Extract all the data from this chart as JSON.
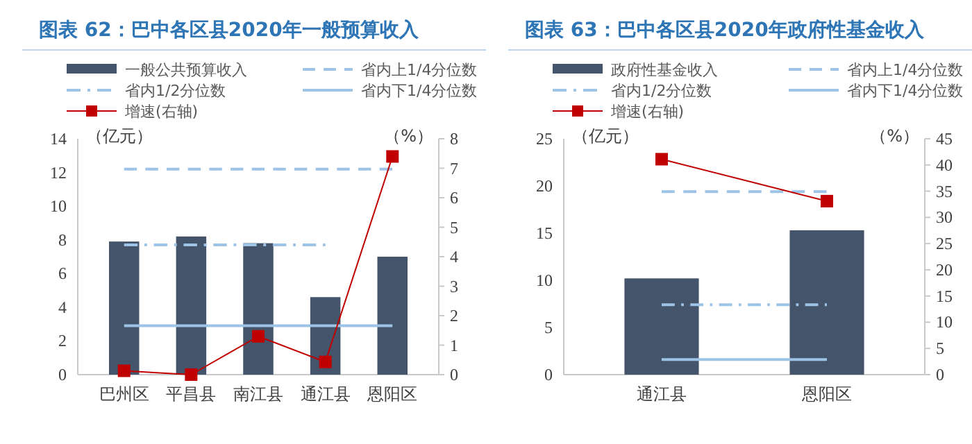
{
  "chart_data": [
    {
      "type": "bar",
      "title": "图表 62：巴中各区县2020年一般预算收入",
      "ylabel": "（亿元）",
      "y2label": "（%）",
      "categories": [
        "巴州区",
        "平昌县",
        "南江县",
        "通江县",
        "恩阳区"
      ],
      "legend": "top",
      "grid": false,
      "ylim": [
        0,
        14
      ],
      "yticks": [
        0,
        2,
        4,
        6,
        8,
        10,
        12,
        14
      ],
      "y2lim": [
        0,
        8
      ],
      "y2ticks": [
        0,
        1,
        2,
        3,
        4,
        5,
        6,
        7,
        8
      ],
      "series": [
        {
          "name": "一般公共预算收入",
          "color": "#44546a",
          "values": [
            7.9,
            8.2,
            7.8,
            4.6,
            7.0
          ]
        },
        {
          "name": "省内上1/4分位数",
          "color": "#9dc3e6",
          "type": "line",
          "line_style": "dashed",
          "marker": "none",
          "values": [
            12.2,
            12.2,
            12.2,
            12.2,
            12.2
          ]
        },
        {
          "name": "省内1/2分位数",
          "color": "#9dc3e6",
          "type": "line",
          "line_style": "dotted",
          "marker": "none",
          "values": [
            7.7,
            7.7,
            7.7,
            7.7,
            null
          ]
        },
        {
          "name": "省内下1/4分位数",
          "color": "#9dc3e6",
          "type": "line",
          "line_style": "solid",
          "marker": "none",
          "values": [
            2.9,
            2.9,
            2.9,
            2.9,
            2.9
          ]
        },
        {
          "name": "增速(右轴)",
          "color": "#c00000",
          "type": "line",
          "line_style": "solid",
          "marker": "square",
          "axis": "y2",
          "values": [
            0.13,
            0,
            1.3,
            0.43,
            7.4
          ]
        }
      ]
    },
    {
      "type": "bar",
      "title": "图表 63：巴中各区县2020年政府性基金收入",
      "ylabel": "（亿元）",
      "y2label": "（%）",
      "categories": [
        "通江县",
        "恩阳区"
      ],
      "legend": "top",
      "grid": false,
      "ylim": [
        0,
        25
      ],
      "yticks": [
        0,
        5,
        10,
        15,
        20,
        25
      ],
      "y2lim": [
        0,
        45
      ],
      "y2ticks": [
        0,
        5,
        10,
        15,
        20,
        25,
        30,
        35,
        40,
        45
      ],
      "series": [
        {
          "name": "政府性基金收入",
          "color": "#44546a",
          "values": [
            10.2,
            15.3
          ]
        },
        {
          "name": "省内上1/4分位数",
          "color": "#9dc3e6",
          "type": "line",
          "line_style": "dashed",
          "marker": "none",
          "values": [
            19.4,
            19.4
          ]
        },
        {
          "name": "省内1/2分位数",
          "color": "#9dc3e6",
          "type": "line",
          "line_style": "dotted",
          "marker": "none",
          "values": [
            7.4,
            7.4
          ]
        },
        {
          "name": "省内下1/4分位数",
          "color": "#9dc3e6",
          "type": "line",
          "line_style": "solid",
          "marker": "none",
          "values": [
            1.6,
            1.6
          ]
        },
        {
          "name": "增速(右轴)",
          "color": "#c00000",
          "type": "line",
          "line_style": "solid",
          "marker": "square",
          "axis": "y2",
          "values": [
            41.1,
            33.1
          ]
        }
      ]
    }
  ]
}
